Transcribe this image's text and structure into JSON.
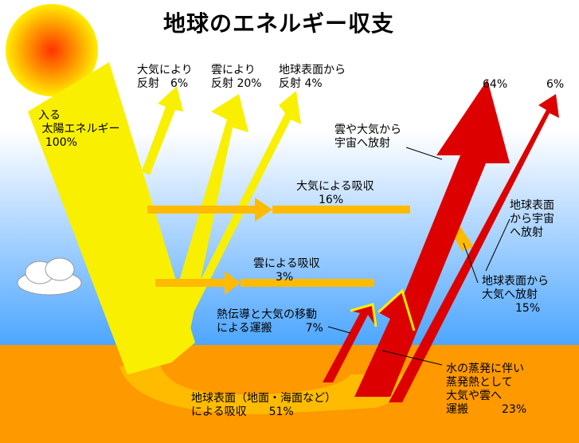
{
  "title": "地球のエネルギー収支",
  "colors": {
    "sun_center": "#ff3300",
    "sun_edge": "#ffee00",
    "solar": "#f8f000",
    "absorbed": "#ffbb00",
    "infrared": "#dd0000",
    "sky": "#55aaff",
    "ground": "#ff9900"
  },
  "labels": {
    "incoming": "入る\n 太陽エネルギー\n  100%",
    "atmos_reflect": "大気により\n反射　6%",
    "cloud_reflect": "雲により\n反射 20%",
    "surface_reflect": "地球表面から\n反射 4%",
    "out_64": "64%",
    "out_6": "6%",
    "cloud_atmos_emit": "雲や大気から\n宇宙へ放射",
    "surface_space_emit": "地球表面\nから宇宙\nへ放射",
    "atmos_absorb": "大気による吸収\n　　16%",
    "cloud_absorb": "雲による吸収\n　　3%",
    "surface_atmos_emit": "地球表面から\n大気へ放射\n　　　15%",
    "conduction": "熱伝導と大気の移動\nによる運搬　　　7%",
    "evaporation": "水の蒸発に伴い\n蒸発熱として\n大気や雲へ\n運搬　　　23%",
    "surface_absorb": "地球表面（地面・海面など）\nによる吸収　　51%"
  }
}
